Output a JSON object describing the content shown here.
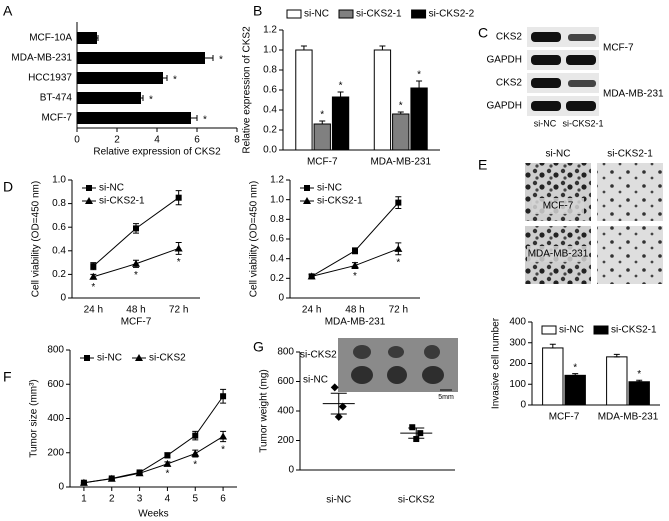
{
  "panel_labels": [
    "A",
    "B",
    "C",
    "D",
    "E",
    "F",
    "G"
  ],
  "blot": {
    "rows": [
      "CKS2",
      "GAPDH",
      "CKS2",
      "GAPDH"
    ],
    "cell_lines": [
      "MCF-7",
      "MDA-MB-231"
    ],
    "lanes": [
      "si-NC",
      "si-CKS2-1"
    ]
  },
  "invasion": {
    "columns": [
      "si-NC",
      "si-CKS2-1"
    ],
    "rows": [
      "MCF-7",
      "MDA-MB-231"
    ]
  },
  "tumor_photo": {
    "rows": [
      "si-CKS2",
      "si-NC"
    ],
    "scale": "5mm"
  },
  "chart_data": [
    {
      "type": "hbar",
      "xlabel": "Relative expression of CKS2",
      "categories": [
        "MCF-10A",
        "MDA-MB-231",
        "HCC1937",
        "BT-474",
        "MCF-7"
      ],
      "values": [
        1.0,
        6.4,
        4.3,
        3.2,
        5.7
      ],
      "errors": [
        0.05,
        0.4,
        0.2,
        0.1,
        0.3
      ],
      "significance": [
        null,
        "*",
        "*",
        "*",
        "*"
      ],
      "color": "#000000",
      "xlim": [
        0,
        8
      ],
      "xticks": [
        0,
        2,
        4,
        6,
        8
      ]
    },
    {
      "type": "bar",
      "ylabel": "Relative expression of CKS2",
      "legend": "top",
      "categories": [
        "MCF-7",
        "MDA-MB-231"
      ],
      "series": [
        {
          "name": "si-NC",
          "color": "#ffffff",
          "values": [
            1.0,
            1.0
          ],
          "errors": [
            0.04,
            0.04
          ],
          "significance": [
            null,
            null
          ]
        },
        {
          "name": "si-CKS2-1",
          "color": "#808080",
          "values": [
            0.26,
            0.36
          ],
          "errors": [
            0.03,
            0.02
          ],
          "significance": [
            "*",
            "*"
          ]
        },
        {
          "name": "si-CKS2-2",
          "color": "#000000",
          "values": [
            0.53,
            0.62
          ],
          "errors": [
            0.05,
            0.07
          ],
          "significance": [
            "*",
            "*"
          ]
        }
      ],
      "ylim": [
        0,
        1.2
      ],
      "yticks": [
        {
          "value": 0,
          "label": "0.0"
        },
        0.2,
        0.4,
        0.6,
        0.8,
        {
          "value": 1,
          "label": "1.0"
        },
        1.2
      ]
    },
    {
      "type": "line",
      "ylabel": "Cell viability (OD=450 nm)",
      "xlabel": "MCF-7",
      "legend": "upper left",
      "categories": [
        "24 h",
        "48 h",
        "72 h"
      ],
      "series": [
        {
          "name": "si-NC",
          "color": "#000000",
          "marker": "square",
          "values": [
            0.27,
            0.59,
            0.85
          ],
          "errors": [
            0.03,
            0.04,
            0.06
          ],
          "significance": [
            null,
            null,
            null
          ]
        },
        {
          "name": "si-CKS2-1",
          "color": "#000000",
          "marker": "triangle",
          "values": [
            0.18,
            0.29,
            0.42
          ],
          "errors": [
            0.02,
            0.03,
            0.05
          ],
          "significance": [
            "*",
            "*",
            "*"
          ]
        }
      ],
      "ylim": [
        0,
        1.0
      ],
      "yticks": [
        0,
        0.2,
        0.4,
        0.6,
        0.8,
        {
          "value": 1,
          "label": "1.0"
        }
      ]
    },
    {
      "type": "line",
      "ylabel": "Cell viability (OD=450 nm)",
      "xlabel": "MDA-MB-231",
      "legend": "upper left",
      "categories": [
        "24 h",
        "48 h",
        "72 h"
      ],
      "series": [
        {
          "name": "si-NC",
          "color": "#000000",
          "marker": "square",
          "values": [
            0.22,
            0.48,
            0.97
          ],
          "errors": [
            0.02,
            0.03,
            0.06
          ],
          "significance": [
            null,
            null,
            null
          ]
        },
        {
          "name": "si-CKS2-1",
          "color": "#000000",
          "marker": "triangle",
          "values": [
            0.22,
            0.33,
            0.5
          ],
          "errors": [
            0.02,
            0.03,
            0.06
          ],
          "significance": [
            null,
            "*",
            "*"
          ]
        }
      ],
      "ylim": [
        0,
        1.2
      ],
      "yticks": [
        0,
        0.2,
        0.4,
        0.6,
        0.8,
        {
          "value": 1,
          "label": "1.0"
        },
        1.2
      ]
    },
    {
      "type": "bar",
      "ylabel": "Invasive cell number",
      "legend": "upper center",
      "categories": [
        "MCF-7",
        "MDA-MB-231"
      ],
      "series": [
        {
          "name": "si-NC",
          "color": "#ffffff",
          "values": [
            275,
            232
          ],
          "errors": [
            18,
            12
          ],
          "significance": [
            null,
            null
          ]
        },
        {
          "name": "si-CKS2-1",
          "color": "#000000",
          "values": [
            143,
            112
          ],
          "errors": [
            8,
            7
          ],
          "significance": [
            "*",
            "*"
          ]
        }
      ],
      "ylim": [
        0,
        400
      ],
      "yticks": [
        0,
        100,
        200,
        300,
        400
      ]
    },
    {
      "type": "line",
      "ylabel": "Tumor size (mm³)",
      "xlabel": "Weeks",
      "legend": "upper center",
      "x": [
        1,
        2,
        3,
        4,
        5,
        6
      ],
      "series": [
        {
          "name": "si-NC",
          "color": "#000000",
          "marker": "square",
          "values": [
            25,
            50,
            85,
            185,
            300,
            530
          ],
          "errors": [
            3,
            4,
            8,
            15,
            25,
            40
          ],
          "significance": [
            null,
            null,
            null,
            null,
            null,
            null
          ]
        },
        {
          "name": "si-CKS2",
          "color": "#000000",
          "marker": "triangle",
          "values": [
            25,
            48,
            80,
            135,
            195,
            295
          ],
          "errors": [
            3,
            4,
            8,
            12,
            20,
            30
          ],
          "significance": [
            null,
            null,
            null,
            "*",
            "*",
            "*"
          ]
        }
      ],
      "xlim": [
        0.5,
        6.5
      ],
      "xticks": [
        1,
        2,
        3,
        4,
        5,
        6
      ],
      "ylim": [
        0,
        800
      ],
      "yticks": [
        0,
        200,
        400,
        600,
        800
      ]
    },
    {
      "type": "strip",
      "ylabel": "Tumor weight (mg)",
      "categories": [
        "si-NC",
        "si-CKS2"
      ],
      "points": [
        [
          560,
          430,
          360
        ],
        [
          290,
          250,
          210
        ]
      ],
      "markers": [
        "diamond",
        "square"
      ],
      "means": [
        450,
        250
      ],
      "errors": [
        70,
        35
      ],
      "color": "#000000",
      "ylim": [
        0,
        800
      ],
      "yticks": [
        0,
        200,
        400,
        600,
        800
      ]
    }
  ]
}
